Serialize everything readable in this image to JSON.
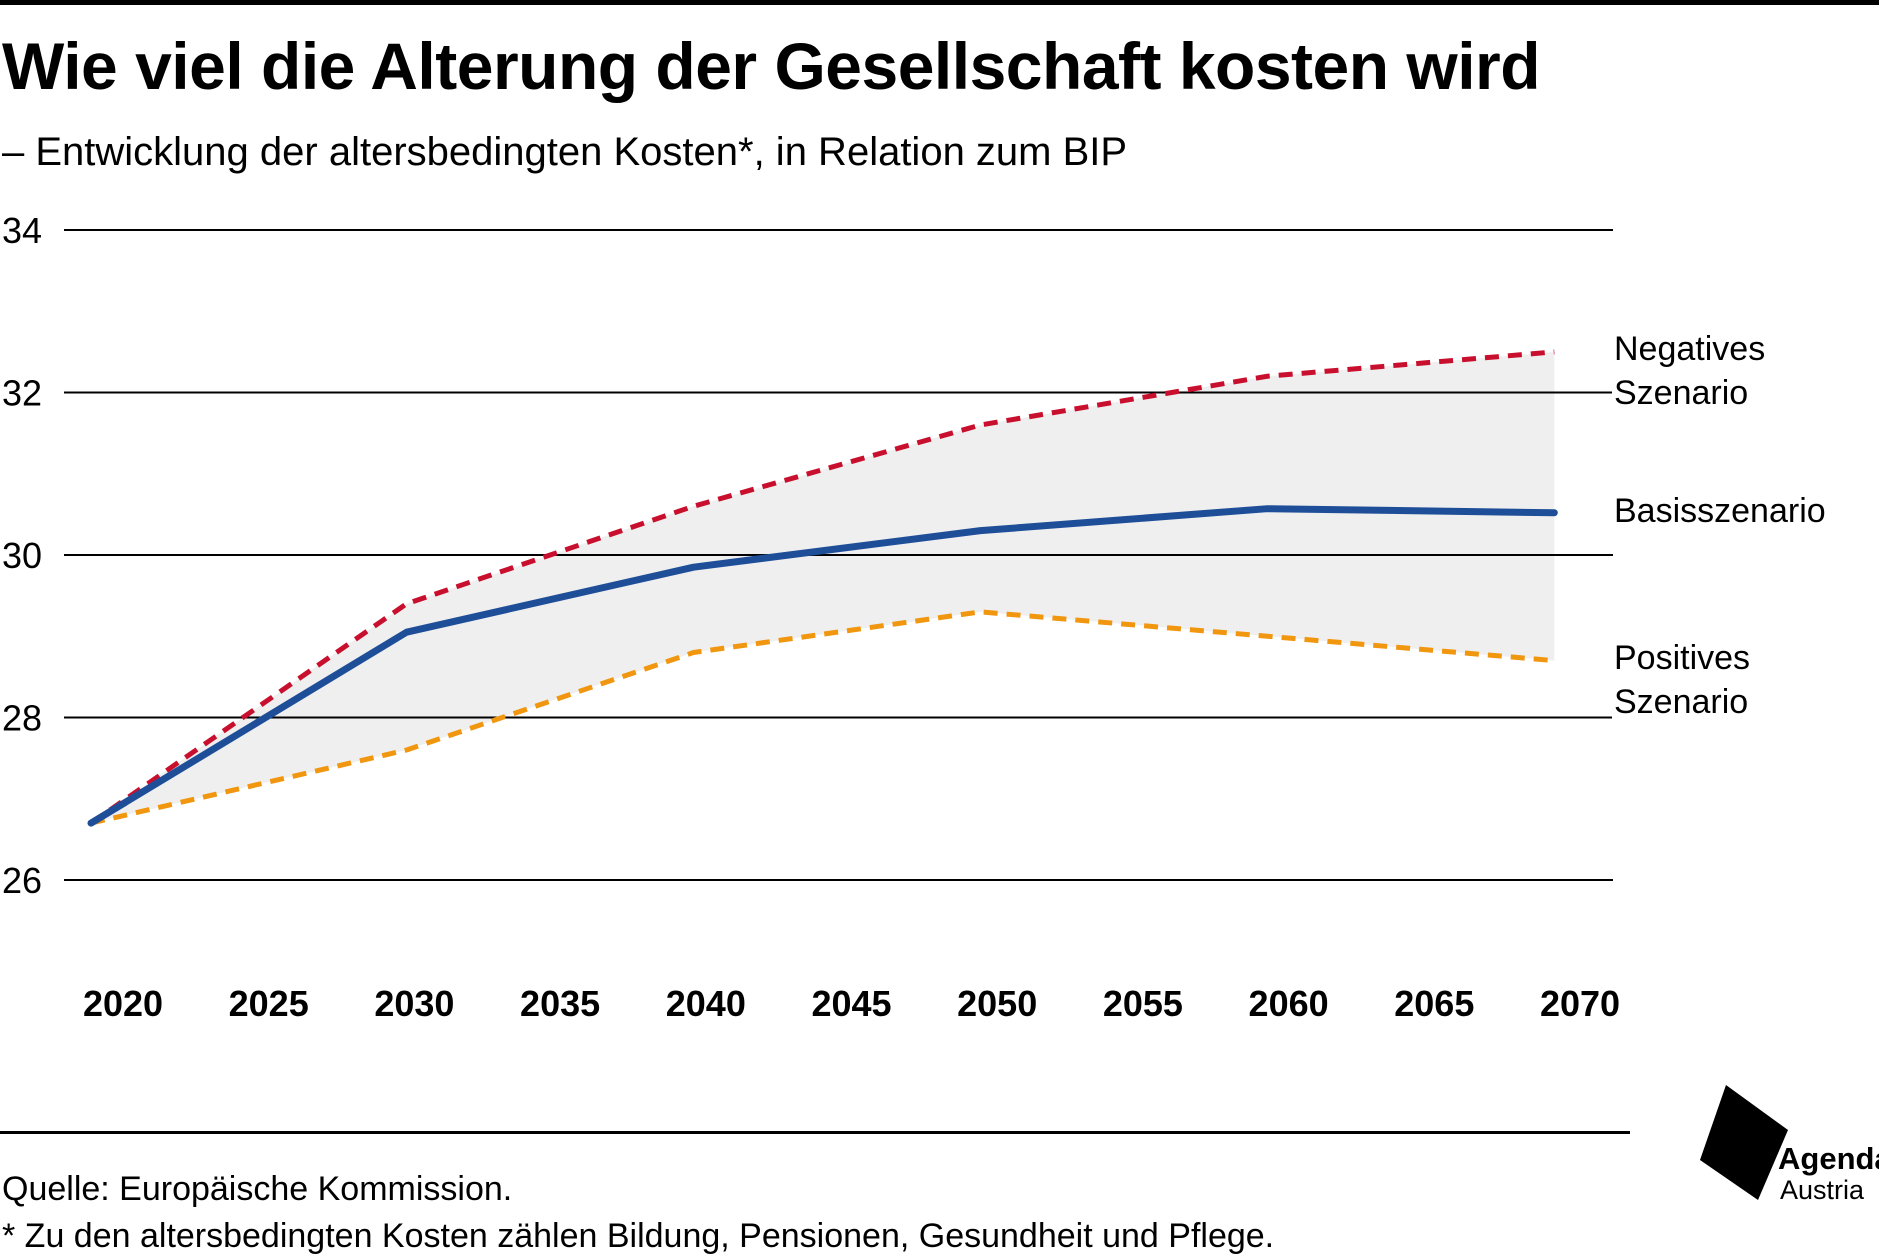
{
  "header": {
    "title": "Wie viel die Alterung der Gesellschaft kosten wird",
    "subtitle": "– Entwicklung der altersbedingten Kosten*, in Relation zum BIP"
  },
  "footer": {
    "source": "Quelle: Europäische Kommission.",
    "footnote": "* Zu den altersbedingten Kosten zählen Bildung, Pensionen, Gesundheit und Pflege."
  },
  "logo": {
    "icon": "agenda-austria-logo-icon",
    "name": "Agenda",
    "sub": "Austria"
  },
  "chart_data": {
    "type": "line",
    "title": "Wie viel die Alterung der Gesellschaft kosten wird",
    "subtitle": "– Entwicklung der altersbedingten Kosten*, in Relation zum BIP",
    "xlabel": "",
    "ylabel": "",
    "x_ticks": [
      "2020",
      "2025",
      "2030",
      "2035",
      "2040",
      "2045",
      "2050",
      "2055",
      "2060",
      "2065",
      "2070"
    ],
    "y_ticks": [
      "26",
      "28",
      "30",
      "32",
      "34"
    ],
    "xlim": [
      2019,
      2071
    ],
    "ylim": [
      26,
      34
    ],
    "grid": "horizontal",
    "band": {
      "between": [
        "Negatives Szenario",
        "Positives Szenario"
      ],
      "color": "#efefef"
    },
    "series": [
      {
        "name": "Negatives Szenario",
        "label_lines": [
          "Negatives",
          "Szenario"
        ],
        "color": "#c8102e",
        "style": "dashed",
        "x": [
          2019,
          2030,
          2040,
          2050,
          2060,
          2070
        ],
        "y": [
          26.7,
          29.4,
          30.6,
          31.6,
          32.2,
          32.5
        ]
      },
      {
        "name": "Basisszenario",
        "label_lines": [
          "Basisszenario"
        ],
        "color": "#1f4e99",
        "style": "solid",
        "x": [
          2019,
          2030,
          2040,
          2050,
          2060,
          2070
        ],
        "y": [
          26.7,
          29.05,
          29.85,
          30.3,
          30.57,
          30.52
        ]
      },
      {
        "name": "Positives Szenario",
        "label_lines": [
          "Positives",
          "Szenario"
        ],
        "color": "#f0960f",
        "style": "dashed",
        "x": [
          2019,
          2030,
          2040,
          2050,
          2060,
          2070
        ],
        "y": [
          26.7,
          27.6,
          28.8,
          29.3,
          29.0,
          28.7
        ]
      }
    ]
  }
}
